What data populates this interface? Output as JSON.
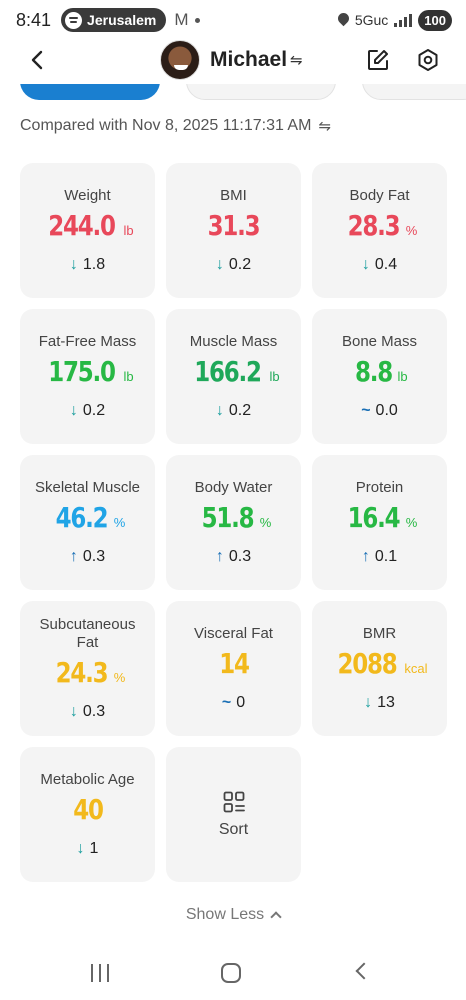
{
  "status_bar": {
    "time": "8:41",
    "media_label": "Jerusalem",
    "network": "5Guc",
    "battery": "100"
  },
  "header": {
    "profile_name": "Michael"
  },
  "compared_text": "Compared with Nov 8, 2025 11:17:31 AM",
  "metrics": [
    {
      "label": "Weight",
      "value": "244.0",
      "unit": "lb",
      "color": "#e8485a",
      "change_dir": "down",
      "change": "1.8"
    },
    {
      "label": "BMI",
      "value": "31.3",
      "unit": "",
      "color": "#e8485a",
      "change_dir": "down",
      "change": "0.2"
    },
    {
      "label": "Body Fat",
      "value": "28.3",
      "unit": "%",
      "color": "#e8485a",
      "change_dir": "down",
      "change": "0.4"
    },
    {
      "label": "Fat-Free Mass",
      "value": "175.0",
      "unit": "lb",
      "color": "#27b844",
      "change_dir": "down",
      "change": "0.2"
    },
    {
      "label": "Muscle Mass",
      "value": "166.2",
      "unit": "lb",
      "color": "#1fa85a",
      "change_dir": "down",
      "change": "0.2"
    },
    {
      "label": "Bone Mass",
      "value": "8.8",
      "unit": "lb",
      "color": "#27b844",
      "change_dir": "flat",
      "change": "0.0"
    },
    {
      "label": "Skeletal Muscle",
      "value": "46.2",
      "unit": "%",
      "color": "#20a4e6",
      "change_dir": "up",
      "change": "0.3"
    },
    {
      "label": "Body Water",
      "value": "51.8",
      "unit": "%",
      "color": "#27b844",
      "change_dir": "up",
      "change": "0.3"
    },
    {
      "label": "Protein",
      "value": "16.4",
      "unit": "%",
      "color": "#27b844",
      "change_dir": "up",
      "change": "0.1"
    },
    {
      "label": "Subcutaneous Fat",
      "value": "24.3",
      "unit": "%",
      "color": "#f2b91c",
      "change_dir": "down",
      "change": "0.3"
    },
    {
      "label": "Visceral Fat",
      "value": "14",
      "unit": "",
      "color": "#f2b91c",
      "change_dir": "flat",
      "change": "0"
    },
    {
      "label": "BMR",
      "value": "2088",
      "unit": "kcal",
      "color": "#f2b91c",
      "change_dir": "down",
      "change": "13"
    },
    {
      "label": "Metabolic Age",
      "value": "40",
      "unit": "",
      "color": "#f2b91c",
      "change_dir": "down",
      "change": "1"
    }
  ],
  "sort_label": "Sort",
  "show_less_label": "Show Less",
  "icons": {
    "back": "chevron-left-icon",
    "edit": "edit-icon",
    "settings": "gear-icon",
    "sort": "sort-icon",
    "arrow_down": "arrow-down-icon",
    "arrow_up": "arrow-up-icon",
    "flat": "tilde-icon"
  }
}
